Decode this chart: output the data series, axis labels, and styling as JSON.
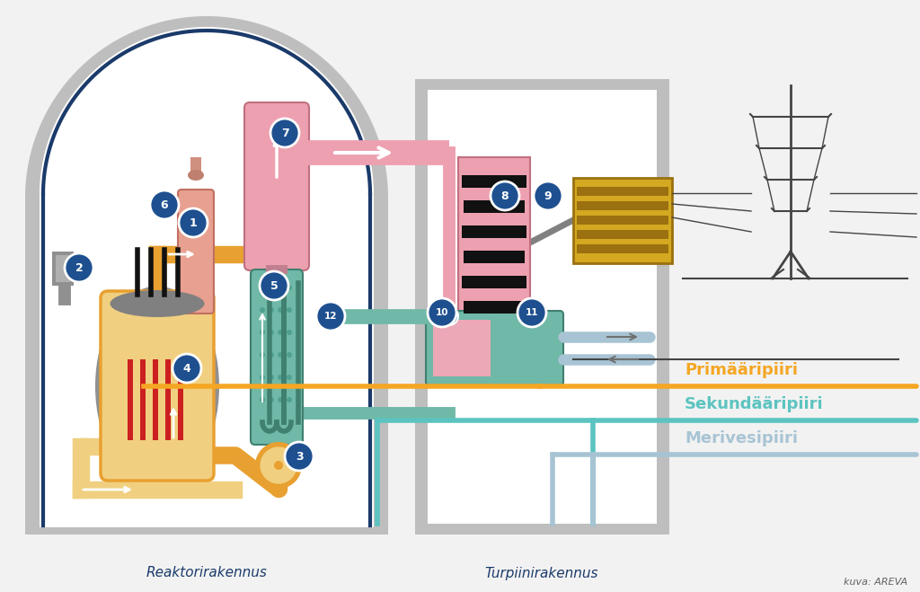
{
  "bg_color": "#f2f2f2",
  "white": "#ffffff",
  "reactor_building_label": "Reaktorirakennus",
  "turbine_building_label": "Turpiinirakennus",
  "credit_label": "kuva: AREVA",
  "legend_primary_label": "Primääripiiri",
  "legend_secondary_label": "Sekundääripiiri",
  "legend_sea_label": "Merivesipiiri",
  "primary_color": "#F5A623",
  "secondary_color": "#5BC4C0",
  "seawater_color": "#A8C4D4",
  "reactor_yellow": "#F0D080",
  "reactor_orange": "#E8A030",
  "steam_gen_pink": "#EDA0B0",
  "steam_gen_teal": "#70B8A8",
  "pink_pipe": "#EDA0B0",
  "teal_pipe": "#70B8A8",
  "red_fuel": "#CC2020",
  "gray_outer": "#BEBEBE",
  "gray_inner": "#D8D8D8",
  "blue_border": "#1A3A6A",
  "blue_circle": "#1E5090",
  "gold_turbine": "#D4A820",
  "dark_gold": "#9A7010",
  "black": "#111111",
  "dark_gray": "#606060",
  "numbers": [
    "1",
    "2",
    "3",
    "4",
    "5",
    "6",
    "7",
    "8",
    "9",
    "10",
    "11",
    "12"
  ],
  "num_x": [
    215,
    88,
    333,
    208,
    305,
    183,
    317,
    562,
    610,
    492,
    592,
    368
  ],
  "num_y": [
    248,
    298,
    508,
    410,
    318,
    228,
    148,
    218,
    218,
    348,
    348,
    352
  ]
}
